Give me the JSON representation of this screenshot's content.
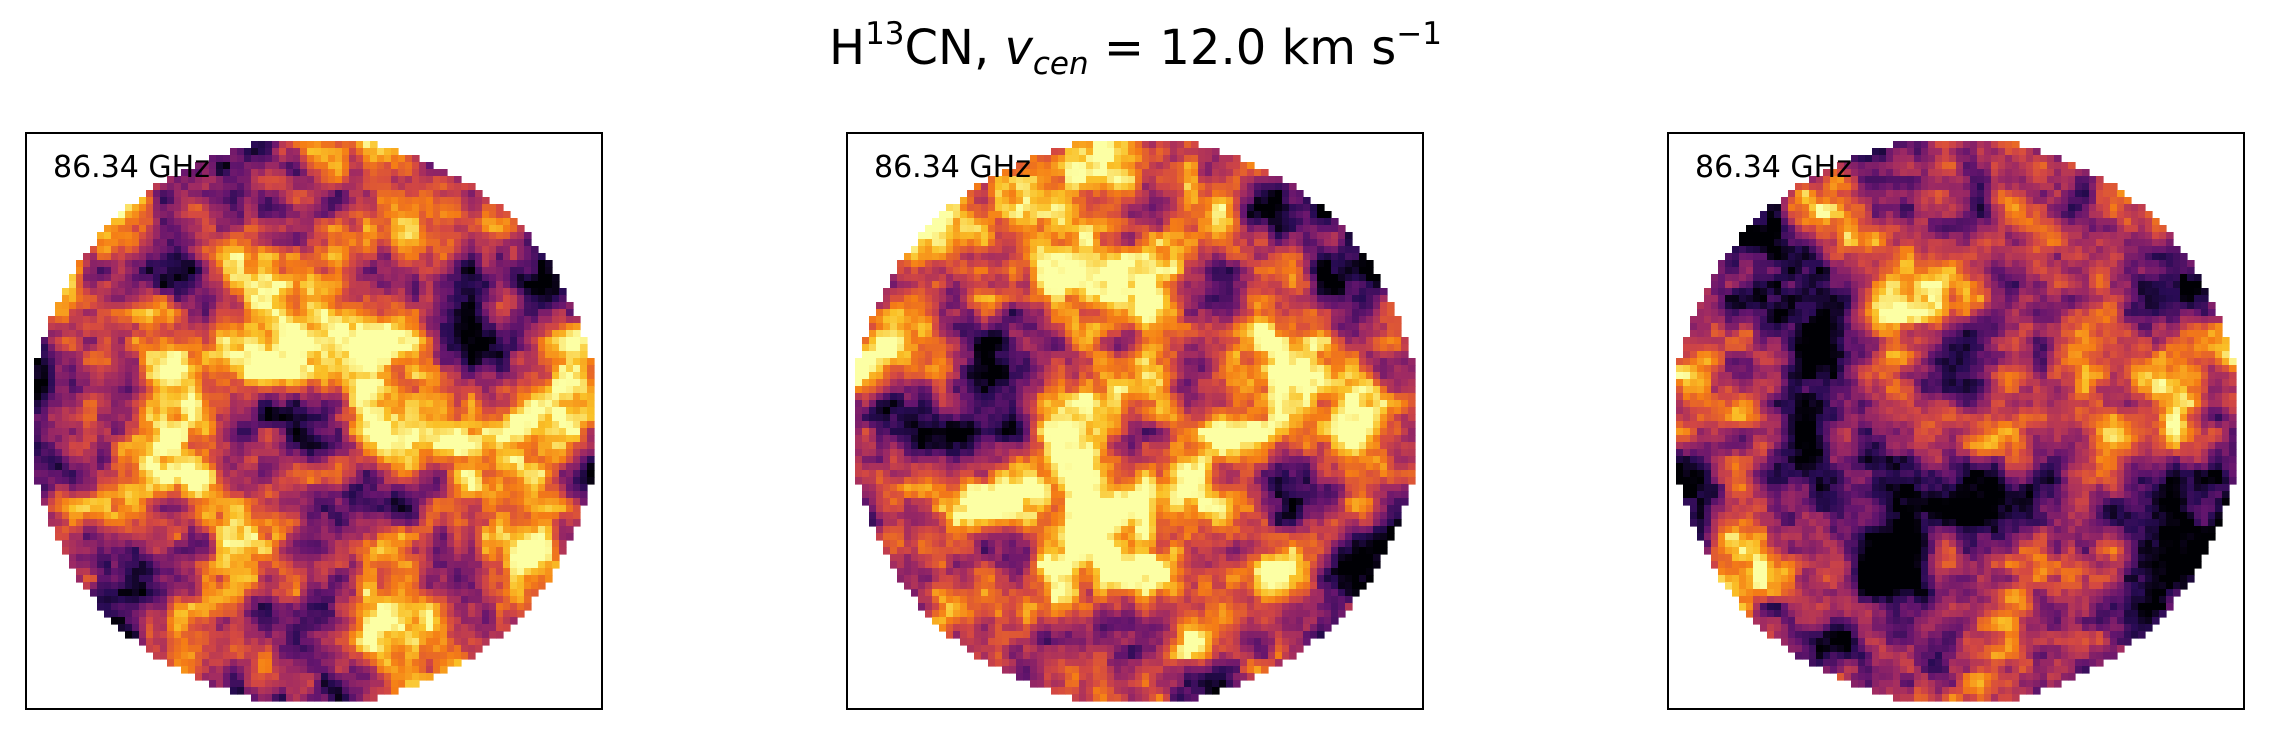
{
  "figure": {
    "title": {
      "species_base": "H",
      "species_sup": "13",
      "species_rest": "CN, ",
      "v_symbol": "v",
      "v_sub": "cen",
      "equals": " = ",
      "value": " 12.0 km s",
      "unit_sup": "−1"
    },
    "colormap": "inferno",
    "panels": [
      {
        "label": "86.34 GHz",
        "seed": 11,
        "brightness": 0.62
      },
      {
        "label": "86.34 GHz",
        "seed": 29,
        "brightness": 0.58
      },
      {
        "label": "86.34 GHz",
        "seed": 47,
        "brightness": 0.38
      }
    ]
  }
}
